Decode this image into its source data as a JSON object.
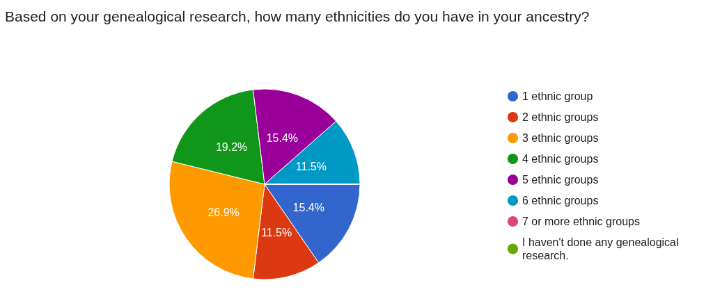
{
  "chart_data": {
    "type": "pie",
    "title": "Based on your genealogical research, how many ethnicities do you have in your ancestry?",
    "categories": [
      "1 ethnic group",
      "2 ethnic groups",
      "3 ethnic groups",
      "4 ethnic groups",
      "5 ethnic groups",
      "6 ethnic groups",
      "7 or more ethnic groups",
      "I haven't done any genealogical research."
    ],
    "values": [
      15.4,
      11.5,
      26.9,
      19.2,
      15.4,
      11.5,
      0,
      0
    ],
    "value_labels": [
      "15.4%",
      "11.5%",
      "26.9%",
      "19.2%",
      "15.4%",
      "11.5%",
      null,
      null
    ],
    "colors": [
      "#3366cc",
      "#dc3912",
      "#ff9900",
      "#109618",
      "#990099",
      "#0099c6",
      "#dd4477",
      "#66aa00"
    ],
    "legend": "right"
  }
}
